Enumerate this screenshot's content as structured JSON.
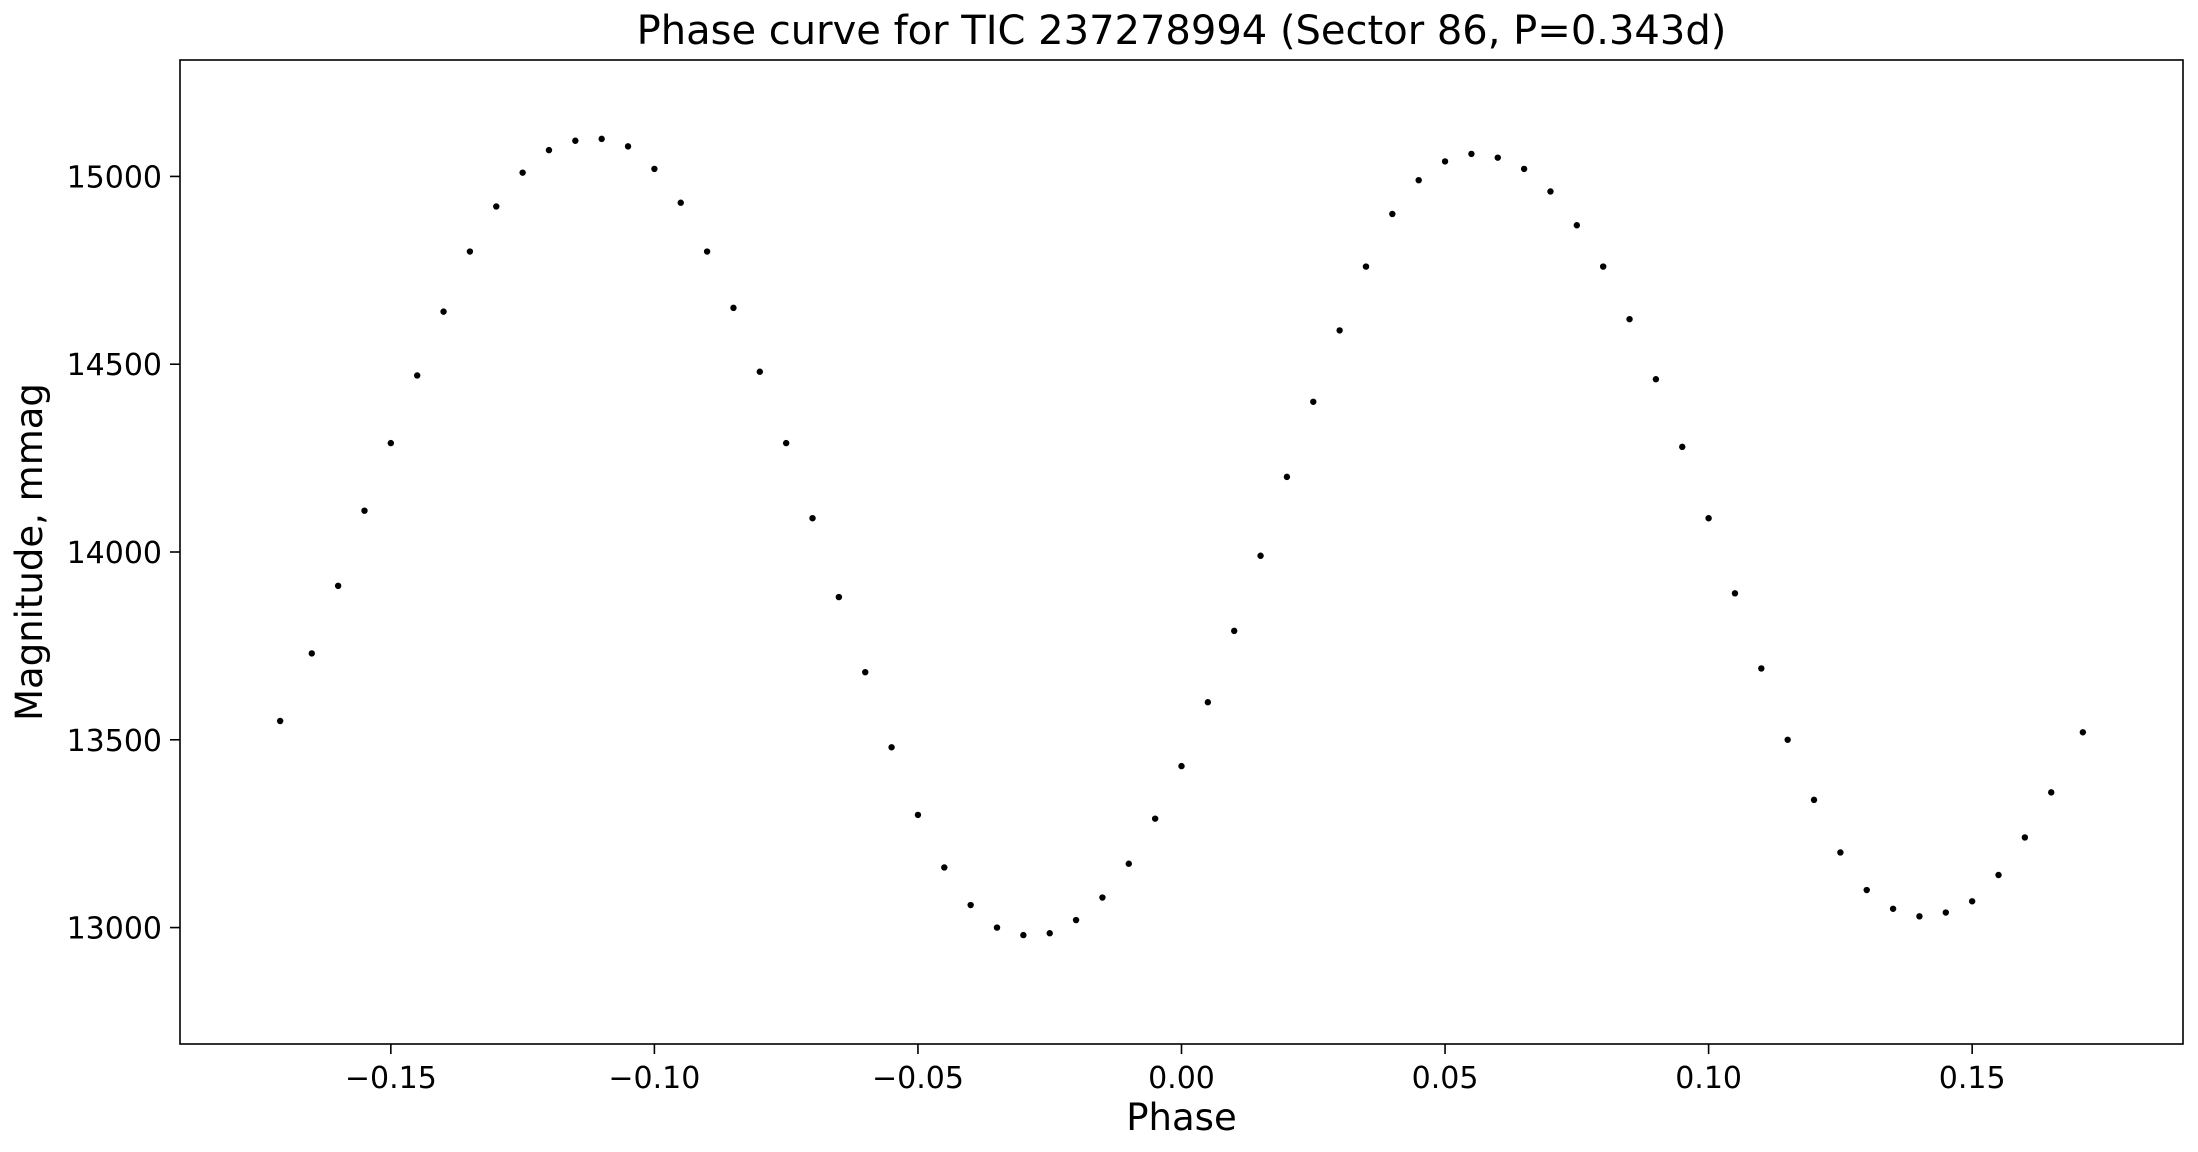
{
  "chart_data": {
    "type": "scatter",
    "title": "Phase curve for TIC 237278994 (Sector 86, P=0.343d)",
    "xlabel": "Phase",
    "ylabel": "Magnitude, mmag",
    "xlim": [
      -0.19,
      0.19
    ],
    "ylim": [
      12690,
      15310
    ],
    "x_ticks": [
      {
        "value": -0.15,
        "label": "−0.15"
      },
      {
        "value": -0.1,
        "label": "−0.10"
      },
      {
        "value": -0.05,
        "label": "−0.05"
      },
      {
        "value": 0.0,
        "label": "0.00"
      },
      {
        "value": 0.05,
        "label": "0.05"
      },
      {
        "value": 0.1,
        "label": "0.10"
      },
      {
        "value": 0.15,
        "label": "0.15"
      }
    ],
    "y_ticks": [
      {
        "value": 13000,
        "label": "13000"
      },
      {
        "value": 13500,
        "label": "13500"
      },
      {
        "value": 14000,
        "label": "14000"
      },
      {
        "value": 14500,
        "label": "14500"
      },
      {
        "value": 15000,
        "label": "15000"
      }
    ],
    "grid": false,
    "legend": "none",
    "marker_color": "#000000",
    "series": [
      {
        "x": [
          -0.171,
          -0.165,
          -0.16,
          -0.155,
          -0.15,
          -0.145,
          -0.14,
          -0.135,
          -0.13,
          -0.125,
          -0.12,
          -0.115,
          -0.11,
          -0.105,
          -0.1,
          -0.095,
          -0.09,
          -0.085,
          -0.08,
          -0.075,
          -0.07,
          -0.065,
          -0.06,
          -0.055,
          -0.05,
          -0.045,
          -0.04,
          -0.035,
          -0.03,
          -0.025,
          -0.02,
          -0.015,
          -0.01,
          -0.005,
          0.0,
          0.005,
          0.01,
          0.015,
          0.02,
          0.025,
          0.03,
          0.035,
          0.04,
          0.045,
          0.05,
          0.055,
          0.06,
          0.065,
          0.07,
          0.075,
          0.08,
          0.085,
          0.09,
          0.095,
          0.1,
          0.105,
          0.11,
          0.115,
          0.12,
          0.125,
          0.13,
          0.135,
          0.14,
          0.145,
          0.15,
          0.155,
          0.16,
          0.165,
          0.171
        ],
        "y": [
          13550,
          13730,
          13910,
          14110,
          14290,
          14470,
          14640,
          14800,
          14920,
          15010,
          15070,
          15095,
          15100,
          15080,
          15020,
          14930,
          14800,
          14650,
          14480,
          14290,
          14090,
          13880,
          13680,
          13480,
          13300,
          13160,
          13060,
          13000,
          12980,
          12985,
          13020,
          13080,
          13170,
          13290,
          13430,
          13600,
          13790,
          13990,
          14200,
          14400,
          14590,
          14760,
          14900,
          14990,
          15040,
          15060,
          15050,
          15020,
          14960,
          14870,
          14760,
          14620,
          14460,
          14280,
          14090,
          13890,
          13690,
          13500,
          13340,
          13200,
          13100,
          13050,
          13030,
          13040,
          13070,
          13140,
          13240,
          13360,
          13520
        ]
      }
    ]
  }
}
